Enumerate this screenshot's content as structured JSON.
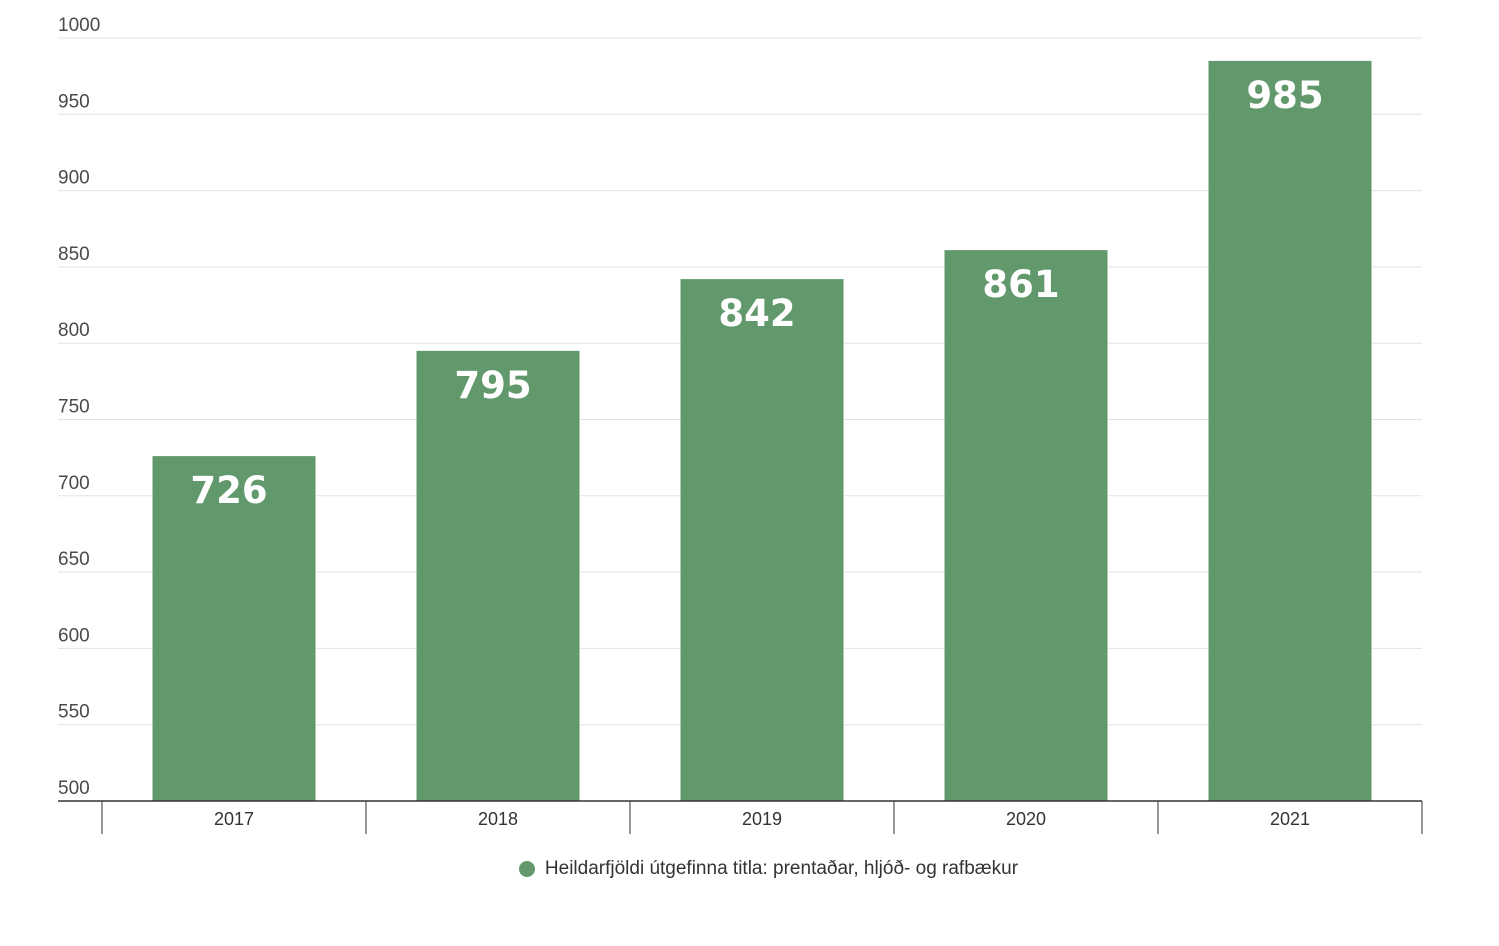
{
  "colors": {
    "bar": "#61996c",
    "grid": "#e3e3e3",
    "axis": "#333333",
    "label": "#ffffff"
  },
  "chart_data": {
    "type": "bar",
    "categories": [
      "2017",
      "2018",
      "2019",
      "2020",
      "2021"
    ],
    "values": [
      726,
      795,
      842,
      861,
      985
    ],
    "data_labels": [
      "726",
      "795",
      "842",
      "861",
      "985"
    ],
    "series": [
      {
        "name": "Heildarfjöldi útgefinna titla: prentaðar, hljóð- og rafbækur",
        "values": [
          726,
          795,
          842,
          861,
          985
        ]
      }
    ],
    "ylim": [
      500,
      1000
    ],
    "yticks": [
      500,
      550,
      600,
      650,
      700,
      750,
      800,
      850,
      900,
      950,
      1000
    ],
    "ytick_labels": [
      "500",
      "550",
      "600",
      "650",
      "700",
      "750",
      "800",
      "850",
      "900",
      "950",
      "1000"
    ],
    "grid": true,
    "legend_position": "bottom-center"
  }
}
